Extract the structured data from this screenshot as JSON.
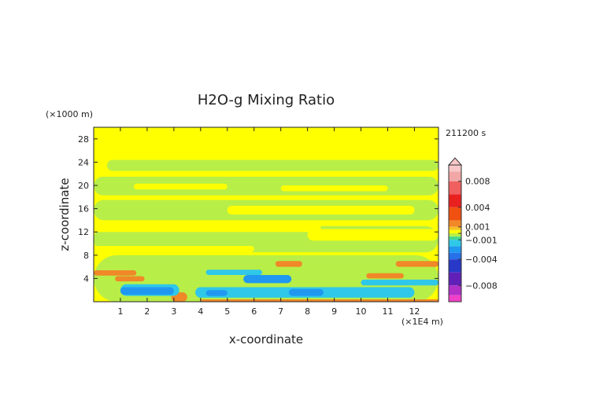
{
  "chart_data": {
    "type": "heatmap",
    "title": "H2O-g Mixing Ratio",
    "xlabel": "x-coordinate",
    "ylabel": "z-coordinate",
    "x_unit": "(×1E4 m)",
    "y_unit": "(×1000 m)",
    "time_label": "211200 s",
    "xlim": [
      0,
      12.9
    ],
    "ylim": [
      0,
      30
    ],
    "x_ticks": [
      1,
      2,
      3,
      4,
      5,
      6,
      7,
      8,
      9,
      10,
      11,
      12
    ],
    "y_ticks": [
      4,
      8,
      12,
      16,
      20,
      24,
      28
    ],
    "background_value": 0.0005,
    "regions": [
      {
        "level": "light-green",
        "x": [
          0.5,
          12.9
        ],
        "z": [
          22.5,
          24.4
        ]
      },
      {
        "level": "light-green",
        "x": [
          0.0,
          12.9
        ],
        "z": [
          18.3,
          21.5
        ]
      },
      {
        "level": "light-green",
        "x": [
          0.0,
          12.9
        ],
        "z": [
          14.0,
          17.5
        ]
      },
      {
        "level": "light-green",
        "x": [
          0.0,
          12.9
        ],
        "z": [
          8.5,
          13.0
        ]
      },
      {
        "level": "light-green",
        "x": [
          0.0,
          12.9
        ],
        "z": [
          0.0,
          8.0
        ]
      },
      {
        "level": "yellow",
        "x": [
          1.5,
          5.0
        ],
        "z": [
          19.3,
          20.3
        ]
      },
      {
        "level": "yellow",
        "x": [
          7.0,
          11.0
        ],
        "z": [
          19.0,
          20.0
        ]
      },
      {
        "level": "yellow",
        "x": [
          5.0,
          12.0
        ],
        "z": [
          15.0,
          16.5
        ]
      },
      {
        "level": "yellow",
        "x": [
          0.0,
          8.5
        ],
        "z": [
          12.0,
          13.5
        ]
      },
      {
        "level": "yellow",
        "x": [
          8.0,
          12.9
        ],
        "z": [
          10.5,
          12.5
        ]
      },
      {
        "level": "yellow",
        "x": [
          0.0,
          6.0
        ],
        "z": [
          8.5,
          9.6
        ]
      },
      {
        "level": "orange",
        "x": [
          0.0,
          1.6
        ],
        "z": [
          4.5,
          5.4
        ]
      },
      {
        "level": "orange",
        "x": [
          0.8,
          1.9
        ],
        "z": [
          3.5,
          4.4
        ]
      },
      {
        "level": "orange",
        "x": [
          6.8,
          7.8
        ],
        "z": [
          6.0,
          7.0
        ]
      },
      {
        "level": "orange",
        "x": [
          11.3,
          12.9
        ],
        "z": [
          6.0,
          7.0
        ]
      },
      {
        "level": "orange",
        "x": [
          10.2,
          11.6
        ],
        "z": [
          4.0,
          4.9
        ]
      },
      {
        "level": "orange",
        "x": [
          2.9,
          3.5
        ],
        "z": [
          0.0,
          1.6
        ]
      },
      {
        "level": "orange",
        "x": [
          4.0,
          12.9
        ],
        "z": [
          0.0,
          0.4
        ]
      },
      {
        "level": "cyan",
        "x": [
          1.0,
          3.2
        ],
        "z": [
          1.0,
          3.0
        ]
      },
      {
        "level": "cyan",
        "x": [
          3.8,
          12.0
        ],
        "z": [
          0.7,
          2.5
        ]
      },
      {
        "level": "cyan",
        "x": [
          4.2,
          6.3
        ],
        "z": [
          4.6,
          5.5
        ]
      },
      {
        "level": "cyan",
        "x": [
          10.0,
          12.9
        ],
        "z": [
          2.8,
          3.8
        ]
      },
      {
        "level": "blue",
        "x": [
          1.0,
          3.0
        ],
        "z": [
          1.2,
          2.5
        ]
      },
      {
        "level": "blue",
        "x": [
          5.6,
          7.4
        ],
        "z": [
          3.2,
          4.6
        ]
      },
      {
        "level": "blue",
        "x": [
          4.2,
          5.0
        ],
        "z": [
          1.0,
          2.0
        ]
      },
      {
        "level": "blue",
        "x": [
          7.3,
          8.6
        ],
        "z": [
          1.0,
          2.2
        ]
      }
    ],
    "colorbar": {
      "tick_labels": [
        "0.008",
        "0.004",
        "0.001",
        "0",
        "−0.001",
        "−0.004",
        "−0.008"
      ],
      "tick_values": [
        0.008,
        0.004,
        0.001,
        0,
        -0.001,
        -0.004,
        -0.008
      ],
      "range": [
        -0.0105,
        0.0105
      ],
      "bands": [
        {
          "from": 0.0095,
          "to": 0.0105,
          "color": "#f8c8c8"
        },
        {
          "from": 0.008,
          "to": 0.0095,
          "color": "#f2a7a7"
        },
        {
          "from": 0.006,
          "to": 0.008,
          "color": "#f06060"
        },
        {
          "from": 0.004,
          "to": 0.006,
          "color": "#e82020"
        },
        {
          "from": 0.002,
          "to": 0.004,
          "color": "#f05010"
        },
        {
          "from": 0.001,
          "to": 0.002,
          "color": "#f08828"
        },
        {
          "from": 0.0005,
          "to": 0.001,
          "color": "#f6c020"
        },
        {
          "from": 0.0,
          "to": 0.0005,
          "color": "#ffff00"
        },
        {
          "from": -0.0005,
          "to": 0.0,
          "color": "#b8ee48"
        },
        {
          "from": -0.001,
          "to": -0.0005,
          "color": "#40d890"
        },
        {
          "from": -0.002,
          "to": -0.001,
          "color": "#30c8e8"
        },
        {
          "from": -0.003,
          "to": -0.002,
          "color": "#2098f0"
        },
        {
          "from": -0.004,
          "to": -0.003,
          "color": "#2870e8"
        },
        {
          "from": -0.006,
          "to": -0.004,
          "color": "#2838c8"
        },
        {
          "from": -0.008,
          "to": -0.006,
          "color": "#6020b8"
        },
        {
          "from": -0.0095,
          "to": -0.008,
          "color": "#b030c8"
        },
        {
          "from": -0.0105,
          "to": -0.0095,
          "color": "#f040c8"
        }
      ],
      "top_triangle": true
    },
    "level_colors": {
      "yellow": "#ffff00",
      "light-green": "#b8ee48",
      "orange": "#f08828",
      "cyan": "#30c8e8",
      "blue": "#2098f0"
    }
  }
}
